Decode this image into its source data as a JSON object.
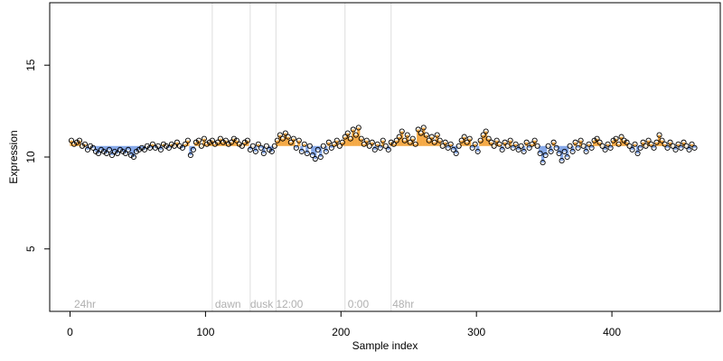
{
  "chart_data": {
    "type": "scatter",
    "title": "",
    "xlabel": "Sample index",
    "ylabel": "Expression",
    "xlim": [
      -15,
      480
    ],
    "ylim": [
      1.6,
      18.4
    ],
    "xticks": [
      0,
      100,
      200,
      300,
      400
    ],
    "yticks": [
      5,
      10,
      15
    ],
    "grid": false,
    "vlines": [
      105,
      133,
      152,
      203,
      237
    ],
    "annotations": [
      {
        "text": "24hr",
        "x": 3
      },
      {
        "text": "dawn",
        "x": 107
      },
      {
        "text": "dusk",
        "x": 133
      },
      {
        "text": "12:00",
        "x": 152
      },
      {
        "text": "0:00",
        "x": 205
      },
      {
        "text": "48hr",
        "x": 238
      }
    ],
    "annotation_y": 2.0,
    "series": [
      {
        "values": [
          [
            1,
            10.9
          ],
          [
            3,
            10.7
          ],
          [
            5,
            10.8
          ],
          [
            7,
            10.9
          ],
          [
            9,
            10.6
          ],
          [
            11,
            10.7
          ],
          [
            13,
            10.4
          ],
          [
            15,
            10.6
          ],
          [
            17,
            10.5
          ],
          [
            19,
            10.3
          ],
          [
            21,
            10.2
          ],
          [
            23,
            10.4
          ],
          [
            25,
            10.3
          ],
          [
            27,
            10.2
          ],
          [
            29,
            10.4
          ],
          [
            31,
            10.1
          ],
          [
            33,
            10.3
          ],
          [
            35,
            10.2
          ],
          [
            37,
            10.4
          ],
          [
            39,
            10.3
          ],
          [
            41,
            10.2
          ],
          [
            43,
            10.4
          ],
          [
            45,
            10.1
          ],
          [
            47,
            10.0
          ],
          [
            49,
            10.3
          ],
          [
            51,
            10.4
          ],
          [
            53,
            10.5
          ],
          [
            55,
            10.4
          ],
          [
            57,
            10.6
          ],
          [
            59,
            10.5
          ],
          [
            61,
            10.7
          ],
          [
            63,
            10.5
          ],
          [
            65,
            10.6
          ],
          [
            67,
            10.4
          ],
          [
            69,
            10.7
          ],
          [
            71,
            10.6
          ],
          [
            73,
            10.5
          ],
          [
            75,
            10.7
          ],
          [
            77,
            10.6
          ],
          [
            79,
            10.8
          ],
          [
            81,
            10.6
          ],
          [
            83,
            10.5
          ],
          [
            85,
            10.7
          ],
          [
            87,
            10.9
          ],
          [
            89,
            10.1
          ],
          [
            91,
            10.4
          ],
          [
            93,
            10.8
          ],
          [
            95,
            10.9
          ],
          [
            97,
            10.6
          ],
          [
            99,
            11.0
          ],
          [
            101,
            10.7
          ],
          [
            103,
            10.8
          ],
          [
            105,
            10.9
          ],
          [
            107,
            10.7
          ],
          [
            109,
            10.8
          ],
          [
            111,
            11.0
          ],
          [
            113,
            10.8
          ],
          [
            115,
            10.9
          ],
          [
            117,
            10.7
          ],
          [
            119,
            10.8
          ],
          [
            121,
            11.0
          ],
          [
            123,
            10.9
          ],
          [
            125,
            10.7
          ],
          [
            127,
            10.6
          ],
          [
            129,
            10.8
          ],
          [
            131,
            10.9
          ],
          [
            133,
            10.4
          ],
          [
            135,
            10.6
          ],
          [
            137,
            10.3
          ],
          [
            139,
            10.7
          ],
          [
            141,
            10.5
          ],
          [
            143,
            10.2
          ],
          [
            145,
            10.6
          ],
          [
            147,
            10.4
          ],
          [
            149,
            10.3
          ],
          [
            151,
            10.6
          ],
          [
            153,
            10.9
          ],
          [
            155,
            11.2
          ],
          [
            157,
            11.0
          ],
          [
            159,
            11.3
          ],
          [
            161,
            11.1
          ],
          [
            163,
            10.8
          ],
          [
            165,
            11.0
          ],
          [
            167,
            10.5
          ],
          [
            169,
            10.9
          ],
          [
            171,
            10.3
          ],
          [
            173,
            10.7
          ],
          [
            175,
            10.2
          ],
          [
            177,
            10.6
          ],
          [
            179,
            10.1
          ],
          [
            181,
            9.9
          ],
          [
            183,
            10.4
          ],
          [
            185,
            10.0
          ],
          [
            187,
            10.6
          ],
          [
            189,
            10.3
          ],
          [
            191,
            10.8
          ],
          [
            193,
            10.5
          ],
          [
            195,
            10.7
          ],
          [
            197,
            10.9
          ],
          [
            199,
            10.6
          ],
          [
            201,
            10.8
          ],
          [
            203,
            11.1
          ],
          [
            205,
            11.3
          ],
          [
            207,
            11.0
          ],
          [
            209,
            11.5
          ],
          [
            211,
            11.2
          ],
          [
            213,
            11.6
          ],
          [
            215,
            11.0
          ],
          [
            217,
            10.7
          ],
          [
            219,
            10.9
          ],
          [
            221,
            10.6
          ],
          [
            223,
            10.8
          ],
          [
            225,
            10.4
          ],
          [
            227,
            10.7
          ],
          [
            229,
            10.5
          ],
          [
            231,
            10.9
          ],
          [
            233,
            10.6
          ],
          [
            235,
            10.4
          ],
          [
            237,
            10.8
          ],
          [
            239,
            10.7
          ],
          [
            241,
            10.9
          ],
          [
            243,
            11.1
          ],
          [
            245,
            11.4
          ],
          [
            247,
            10.9
          ],
          [
            249,
            11.2
          ],
          [
            251,
            10.8
          ],
          [
            253,
            11.0
          ],
          [
            255,
            10.7
          ],
          [
            257,
            11.5
          ],
          [
            259,
            11.3
          ],
          [
            261,
            11.6
          ],
          [
            263,
            11.2
          ],
          [
            265,
            10.9
          ],
          [
            267,
            11.1
          ],
          [
            269,
            10.8
          ],
          [
            271,
            11.2
          ],
          [
            273,
            10.9
          ],
          [
            275,
            10.6
          ],
          [
            277,
            10.8
          ],
          [
            279,
            10.5
          ],
          [
            281,
            10.7
          ],
          [
            283,
            10.4
          ],
          [
            285,
            10.2
          ],
          [
            287,
            10.6
          ],
          [
            289,
            10.9
          ],
          [
            291,
            11.1
          ],
          [
            293,
            10.8
          ],
          [
            295,
            11.0
          ],
          [
            297,
            10.5
          ],
          [
            299,
            10.7
          ],
          [
            301,
            10.3
          ],
          [
            303,
            10.9
          ],
          [
            305,
            11.2
          ],
          [
            307,
            11.4
          ],
          [
            309,
            11.0
          ],
          [
            311,
            10.8
          ],
          [
            313,
            10.6
          ],
          [
            315,
            10.9
          ],
          [
            317,
            10.7
          ],
          [
            319,
            10.4
          ],
          [
            321,
            10.8
          ],
          [
            323,
            10.6
          ],
          [
            325,
            10.9
          ],
          [
            327,
            10.5
          ],
          [
            329,
            10.7
          ],
          [
            331,
            10.4
          ],
          [
            333,
            10.6
          ],
          [
            335,
            10.3
          ],
          [
            337,
            10.8
          ],
          [
            339,
            10.5
          ],
          [
            341,
            10.7
          ],
          [
            343,
            10.9
          ],
          [
            345,
            10.6
          ],
          [
            347,
            10.2
          ],
          [
            349,
            9.7
          ],
          [
            351,
            10.1
          ],
          [
            353,
            10.6
          ],
          [
            355,
            10.3
          ],
          [
            357,
            10.8
          ],
          [
            359,
            10.5
          ],
          [
            361,
            10.2
          ],
          [
            363,
            9.8
          ],
          [
            365,
            10.3
          ],
          [
            367,
            10.0
          ],
          [
            369,
            10.6
          ],
          [
            371,
            10.3
          ],
          [
            373,
            10.8
          ],
          [
            375,
            10.5
          ],
          [
            377,
            10.9
          ],
          [
            379,
            10.6
          ],
          [
            381,
            10.3
          ],
          [
            383,
            10.7
          ],
          [
            385,
            10.5
          ],
          [
            387,
            10.9
          ],
          [
            389,
            11.0
          ],
          [
            391,
            10.8
          ],
          [
            393,
            10.6
          ],
          [
            395,
            10.4
          ],
          [
            397,
            10.7
          ],
          [
            399,
            10.5
          ],
          [
            401,
            10.9
          ],
          [
            403,
            11.0
          ],
          [
            405,
            10.7
          ],
          [
            407,
            11.1
          ],
          [
            409,
            10.9
          ],
          [
            411,
            10.8
          ],
          [
            413,
            10.6
          ],
          [
            415,
            10.4
          ],
          [
            417,
            10.7
          ],
          [
            419,
            10.2
          ],
          [
            421,
            10.5
          ],
          [
            423,
            10.8
          ],
          [
            425,
            10.6
          ],
          [
            427,
            10.9
          ],
          [
            429,
            10.7
          ],
          [
            431,
            10.5
          ],
          [
            433,
            10.8
          ],
          [
            435,
            11.2
          ],
          [
            437,
            10.9
          ],
          [
            439,
            10.7
          ],
          [
            441,
            10.5
          ],
          [
            443,
            10.8
          ],
          [
            445,
            10.6
          ],
          [
            447,
            10.4
          ],
          [
            449,
            10.7
          ],
          [
            451,
            10.5
          ],
          [
            453,
            10.8
          ],
          [
            455,
            10.6
          ],
          [
            457,
            10.4
          ],
          [
            459,
            10.7
          ],
          [
            461,
            10.5
          ]
        ]
      }
    ],
    "bars_baseline": 10.6,
    "colors": {
      "point_stroke": "#000000",
      "bar_up": "#f5a945",
      "bar_down": "#86a8e8",
      "vline": "#dddddd",
      "annotation": "#b0b0b0",
      "axis": "#000000"
    }
  }
}
